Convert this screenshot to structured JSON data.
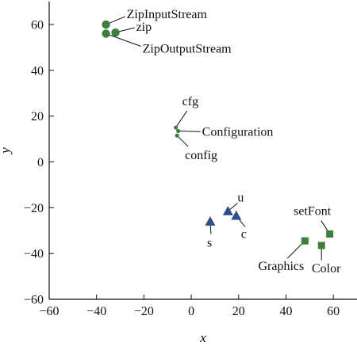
{
  "chart_data": {
    "type": "scatter",
    "title": "",
    "xlabel": "x",
    "ylabel": "y",
    "xlim": [
      -60,
      70
    ],
    "ylim": [
      -60,
      70
    ],
    "xticks": [
      -60,
      -40,
      -20,
      0,
      20,
      40,
      60
    ],
    "yticks": [
      -60,
      -40,
      -20,
      0,
      20,
      40,
      60
    ],
    "grid": false,
    "legend": "none",
    "colors": {
      "green": "#3c7f3c",
      "blue": "#2d4f8a",
      "axis": "#111111"
    },
    "points": [
      {
        "label": "ZipInputStream",
        "x": -36,
        "y": 60,
        "marker": "circle",
        "color": "green",
        "size": "large"
      },
      {
        "label": "zip",
        "x": -32,
        "y": 56.5,
        "marker": "circle",
        "color": "green",
        "size": "large"
      },
      {
        "label": "ZipOutputStream",
        "x": -36,
        "y": 56,
        "marker": "circle",
        "color": "green",
        "size": "large"
      },
      {
        "label": "cfg",
        "x": -6.5,
        "y": 15,
        "marker": "circle",
        "color": "green",
        "size": "small"
      },
      {
        "label": "Configuration",
        "x": -5.5,
        "y": 13.5,
        "marker": "circle",
        "color": "green",
        "size": "small"
      },
      {
        "label": "config",
        "x": -6,
        "y": 11.5,
        "marker": "circle",
        "color": "green",
        "size": "small"
      },
      {
        "label": "u",
        "x": 15.5,
        "y": -21.5,
        "marker": "triangle",
        "color": "blue",
        "size": "large"
      },
      {
        "label": "c",
        "x": 19,
        "y": -23.5,
        "marker": "triangle",
        "color": "blue",
        "size": "large"
      },
      {
        "label": "s",
        "x": 8,
        "y": -26,
        "marker": "triangle",
        "color": "blue",
        "size": "large"
      },
      {
        "label": "setFont",
        "x": 58.5,
        "y": -31.5,
        "marker": "square",
        "color": "green",
        "size": "large"
      },
      {
        "label": "Graphics",
        "x": 48,
        "y": -34.5,
        "marker": "square",
        "color": "green",
        "size": "large"
      },
      {
        "label": "Color",
        "x": 55,
        "y": -36.5,
        "marker": "square",
        "color": "green",
        "size": "large"
      }
    ]
  }
}
